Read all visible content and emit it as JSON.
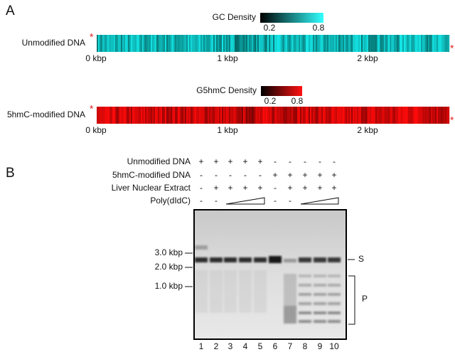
{
  "panel_a": {
    "label": "A",
    "end_marker": "*",
    "tracks": [
      {
        "name": "Unmodified DNA",
        "legend_title": "GC Density",
        "legend_ticks": [
          "0.2",
          "0.8"
        ],
        "axis_ticks": [
          "0 kbp",
          "1 kbp",
          "2 kbp"
        ]
      },
      {
        "name": "5hmC-modified DNA",
        "legend_title": "G5hmC Density",
        "legend_ticks": [
          "0.2",
          "0.8"
        ],
        "axis_ticks": [
          "0 kbp",
          "1 kbp",
          "2 kbp"
        ]
      }
    ]
  },
  "panel_b": {
    "label": "B",
    "conditions": [
      {
        "name": "Unmodified DNA",
        "signs": [
          "+",
          "+",
          "+",
          "+",
          "+",
          "-",
          "-",
          "-",
          "-",
          "-"
        ]
      },
      {
        "name": "5hmC-modified DNA",
        "signs": [
          "-",
          "-",
          "-",
          "-",
          "-",
          "+",
          "+",
          "+",
          "+",
          "+"
        ]
      },
      {
        "name": "Liver Nuclear Extract",
        "signs": [
          "-",
          "+",
          "+",
          "+",
          "+",
          "-",
          "+",
          "+",
          "+",
          "+"
        ]
      },
      {
        "name": "Poly(dIdC)",
        "signs": [
          "-",
          "-",
          null,
          null,
          null,
          "-",
          "-",
          null,
          null,
          null
        ]
      }
    ],
    "size_markers": [
      "3.0 kbp",
      "2.0 kbp",
      "1.0 kbp"
    ],
    "band_labels": [
      "S",
      "P"
    ],
    "lanes": [
      "1",
      "2",
      "3",
      "4",
      "5",
      "6",
      "7",
      "8",
      "9",
      "10"
    ]
  }
}
